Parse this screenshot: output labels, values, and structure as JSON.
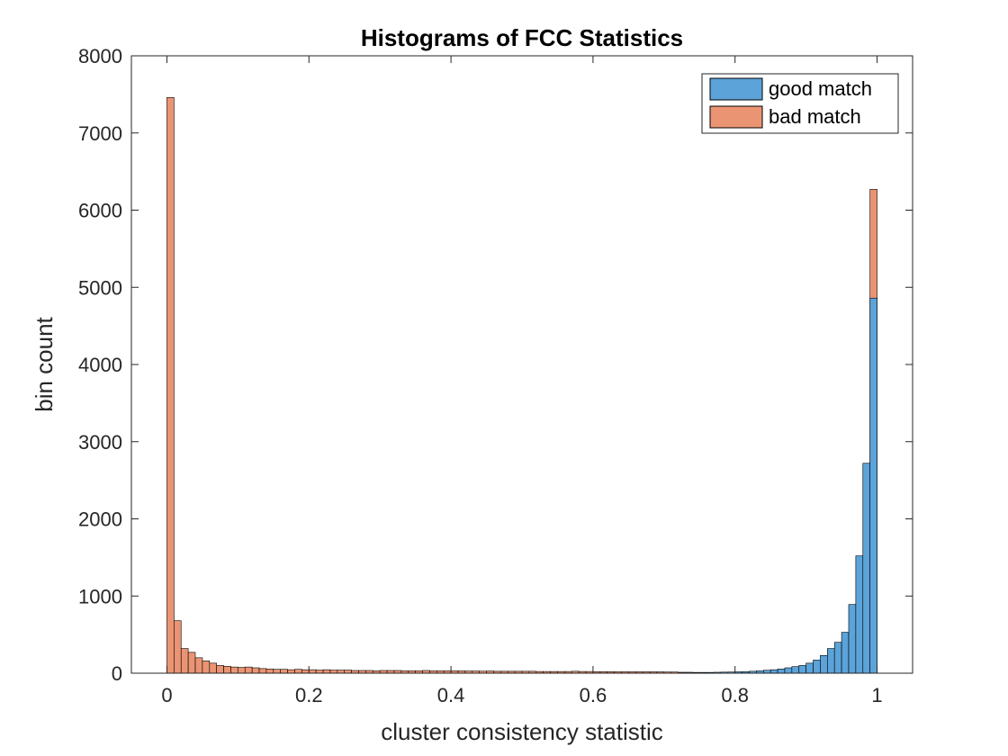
{
  "chart_data": {
    "type": "bar",
    "title": "Histograms of FCC Statistics",
    "xlabel": "cluster consistency statistic",
    "ylabel": "bin count",
    "xlim": [
      -0.05,
      1.05
    ],
    "ylim": [
      0,
      8000
    ],
    "bin_width": 0.01,
    "x_ticks": [
      0,
      0.2,
      0.4,
      0.6,
      0.8,
      1
    ],
    "x_tick_labels": [
      "0",
      "0.2",
      "0.4",
      "0.6",
      "0.8",
      "1"
    ],
    "y_ticks": [
      0,
      1000,
      2000,
      3000,
      4000,
      5000,
      6000,
      7000,
      8000
    ],
    "y_tick_labels": [
      "0",
      "1000",
      "2000",
      "3000",
      "4000",
      "5000",
      "6000",
      "7000",
      "8000"
    ],
    "grid": false,
    "legend_position": "top-right",
    "series": [
      {
        "name": "good match",
        "color": "#5ba3d8",
        "bin_starts": [
          0.72,
          0.73,
          0.74,
          0.75,
          0.76,
          0.77,
          0.78,
          0.79,
          0.8,
          0.81,
          0.82,
          0.83,
          0.84,
          0.85,
          0.86,
          0.87,
          0.88,
          0.89,
          0.9,
          0.91,
          0.92,
          0.93,
          0.94,
          0.95,
          0.96,
          0.97,
          0.98,
          0.99
        ],
        "values": [
          5,
          5,
          8,
          8,
          10,
          12,
          14,
          15,
          18,
          20,
          25,
          30,
          38,
          45,
          55,
          70,
          85,
          100,
          130,
          170,
          230,
          320,
          400,
          530,
          890,
          1520,
          2720,
          4860
        ]
      },
      {
        "name": "bad match",
        "color": "#ea9474",
        "bin_starts": [
          0.0,
          0.01,
          0.02,
          0.03,
          0.04,
          0.05,
          0.06,
          0.07,
          0.08,
          0.09,
          0.1,
          0.11,
          0.12,
          0.13,
          0.14,
          0.15,
          0.16,
          0.17,
          0.18,
          0.19,
          0.2,
          0.21,
          0.22,
          0.23,
          0.24,
          0.25,
          0.26,
          0.27,
          0.28,
          0.29,
          0.3,
          0.31,
          0.32,
          0.33,
          0.34,
          0.35,
          0.36,
          0.37,
          0.38,
          0.39,
          0.4,
          0.41,
          0.42,
          0.43,
          0.44,
          0.45,
          0.46,
          0.47,
          0.48,
          0.49,
          0.5,
          0.51,
          0.52,
          0.53,
          0.54,
          0.55,
          0.56,
          0.57,
          0.58,
          0.59,
          0.6,
          0.61,
          0.62,
          0.63,
          0.64,
          0.65,
          0.66,
          0.67,
          0.68,
          0.69,
          0.7,
          0.71,
          0.72,
          0.73,
          0.74,
          0.75,
          0.76,
          0.77,
          0.78,
          0.79,
          0.8,
          0.81,
          0.82,
          0.83,
          0.84,
          0.85,
          0.86,
          0.87,
          0.88,
          0.89,
          0.9,
          0.91,
          0.92,
          0.93,
          0.94,
          0.95,
          0.96,
          0.97,
          0.98,
          0.99
        ],
        "values": [
          7460,
          680,
          320,
          270,
          200,
          160,
          130,
          100,
          90,
          80,
          75,
          80,
          70,
          60,
          55,
          50,
          50,
          45,
          50,
          45,
          45,
          40,
          45,
          40,
          40,
          40,
          35,
          35,
          35,
          30,
          35,
          35,
          35,
          30,
          30,
          30,
          35,
          30,
          30,
          30,
          30,
          30,
          28,
          28,
          26,
          28,
          25,
          25,
          25,
          25,
          25,
          25,
          22,
          22,
          22,
          22,
          22,
          25,
          22,
          22,
          20,
          20,
          20,
          18,
          18,
          18,
          18,
          18,
          18,
          18,
          15,
          15,
          12,
          12,
          10,
          10,
          8,
          8,
          6,
          5,
          5,
          4,
          3,
          3,
          3,
          2,
          2,
          2,
          2,
          2,
          2,
          2,
          2,
          2,
          2,
          2,
          2,
          2,
          2,
          6270
        ]
      }
    ]
  }
}
